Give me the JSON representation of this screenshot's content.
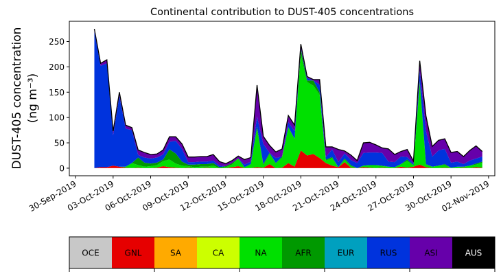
{
  "chart_data": {
    "type": "area",
    "stacked": true,
    "title": "Continental contribution to DUST-405 concentrations",
    "ylabel_line1": "DUST-405 concentration",
    "ylabel_line2": "(ng m⁻³)",
    "xlabel": "",
    "ylim": [
      -15,
      290
    ],
    "yticks": [
      0,
      50,
      100,
      150,
      200,
      250
    ],
    "xticks": [
      "30-Sep-2019",
      "03-Oct-2019",
      "06-Oct-2019",
      "09-Oct-2019",
      "12-Oct-2019",
      "15-Oct-2019",
      "18-Oct-2019",
      "21-Oct-2019",
      "24-Oct-2019",
      "27-Oct-2019",
      "30-Oct-2019",
      "02-Nov-2019"
    ],
    "x": [
      "2019-10-01T12",
      "2019-10-02T00",
      "2019-10-02T12",
      "2019-10-03T00",
      "2019-10-03T12",
      "2019-10-04T00",
      "2019-10-04T12",
      "2019-10-05T00",
      "2019-10-05T12",
      "2019-10-06T00",
      "2019-10-06T12",
      "2019-10-07T00",
      "2019-10-07T12",
      "2019-10-08T00",
      "2019-10-08T12",
      "2019-10-09T00",
      "2019-10-09T12",
      "2019-10-10T00",
      "2019-10-10T12",
      "2019-10-11T00",
      "2019-10-11T12",
      "2019-10-12T00",
      "2019-10-12T12",
      "2019-10-13T00",
      "2019-10-13T12",
      "2019-10-14T00",
      "2019-10-14T12",
      "2019-10-15T00",
      "2019-10-15T12",
      "2019-10-16T00",
      "2019-10-16T12",
      "2019-10-17T00",
      "2019-10-17T12",
      "2019-10-18T00",
      "2019-10-18T12",
      "2019-10-19T00",
      "2019-10-19T12",
      "2019-10-20T00",
      "2019-10-20T12",
      "2019-10-21T00",
      "2019-10-21T12",
      "2019-10-22T00",
      "2019-10-22T12",
      "2019-10-23T00",
      "2019-10-23T12",
      "2019-10-24T00",
      "2019-10-24T12",
      "2019-10-25T00",
      "2019-10-25T12",
      "2019-10-26T00",
      "2019-10-26T12",
      "2019-10-27T00",
      "2019-10-27T12",
      "2019-10-28T00",
      "2019-10-28T12",
      "2019-10-29T00",
      "2019-10-29T12",
      "2019-10-30T00",
      "2019-10-30T12",
      "2019-10-31T00",
      "2019-10-31T12",
      "2019-11-01T00",
      "2019-11-01T12"
    ],
    "series": [
      {
        "name": "OCE",
        "color": "#c8c8c8",
        "values": [
          0,
          0,
          0,
          0,
          0,
          0,
          0,
          0,
          0,
          0,
          0,
          0,
          0,
          0,
          0,
          0,
          0,
          0,
          0,
          0,
          0,
          0,
          0,
          0,
          0,
          0,
          0,
          0,
          0,
          0,
          0,
          0,
          0,
          0,
          0,
          0,
          0,
          0,
          0,
          0,
          0,
          0,
          0,
          0,
          0,
          0,
          0,
          0,
          0,
          0,
          0,
          0,
          0,
          0,
          0,
          0,
          0,
          0,
          0,
          0,
          0,
          0,
          0
        ]
      },
      {
        "name": "GNL",
        "color": "#e60000",
        "values": [
          0,
          2,
          2,
          5,
          3,
          1,
          0,
          1,
          0,
          0,
          1,
          4,
          2,
          1,
          0,
          1,
          0,
          0,
          1,
          0,
          0,
          0,
          2,
          4,
          0,
          0,
          2,
          1,
          8,
          0,
          1,
          10,
          3,
          35,
          25,
          28,
          20,
          10,
          5,
          2,
          12,
          1,
          0,
          2,
          1,
          0,
          1,
          0,
          0,
          3,
          1,
          3,
          7,
          2,
          0,
          0,
          1,
          0,
          0,
          1,
          0,
          2,
          1
        ]
      },
      {
        "name": "SA",
        "color": "#ffaa00",
        "values": [
          0,
          0,
          0,
          0,
          0,
          0,
          0,
          0,
          0,
          0,
          0,
          0,
          0,
          0,
          0,
          0,
          0,
          0,
          0,
          0,
          0,
          0,
          0,
          0,
          0,
          0,
          0,
          0,
          0,
          0,
          0,
          0,
          0,
          0,
          0,
          0,
          0,
          0,
          0,
          0,
          0,
          0,
          0,
          0,
          0,
          0,
          0,
          0,
          0,
          0,
          0,
          0,
          0,
          0,
          0,
          0,
          0,
          0,
          0,
          0,
          0,
          0,
          0
        ]
      },
      {
        "name": "CA",
        "color": "#ccff00",
        "values": [
          0,
          0,
          0,
          0,
          0,
          0,
          0,
          0,
          0,
          0,
          0,
          0,
          0,
          0,
          0,
          0,
          0,
          0,
          0,
          0,
          0,
          0,
          0,
          0,
          0,
          0,
          0,
          0,
          0,
          0,
          0,
          0,
          0,
          0,
          0,
          0,
          0,
          0,
          0,
          0,
          0,
          0,
          0,
          0,
          0,
          0,
          0,
          0,
          0,
          0,
          0,
          0,
          0,
          0,
          0,
          0,
          0,
          0,
          0,
          0,
          0,
          0,
          0
        ]
      },
      {
        "name": "NA",
        "color": "#00e000",
        "values": [
          0,
          0,
          0,
          0,
          0,
          2,
          10,
          5,
          3,
          4,
          5,
          10,
          15,
          8,
          5,
          3,
          2,
          3,
          2,
          5,
          0,
          2,
          5,
          15,
          2,
          8,
          75,
          5,
          20,
          10,
          20,
          70,
          55,
          190,
          145,
          135,
          125,
          5,
          15,
          0,
          5,
          3,
          0,
          3,
          5,
          6,
          3,
          3,
          2,
          5,
          13,
          3,
          160,
          5,
          3,
          5,
          5,
          1,
          3,
          2,
          5,
          5,
          10
        ]
      },
      {
        "name": "AFR",
        "color": "#009900",
        "values": [
          0,
          0,
          0,
          0,
          0,
          0,
          0,
          15,
          8,
          5,
          5,
          3,
          20,
          20,
          8,
          3,
          5,
          5,
          5,
          5,
          2,
          2,
          3,
          0,
          0,
          0,
          5,
          2,
          2,
          0,
          2,
          1,
          0,
          10,
          3,
          10,
          5,
          2,
          2,
          0,
          2,
          2,
          0,
          0,
          0,
          0,
          1,
          0,
          0,
          0,
          3,
          0,
          5,
          1,
          0,
          0,
          2,
          0,
          0,
          0,
          0,
          2,
          2
        ]
      },
      {
        "name": "EUR",
        "color": "#00a0bf",
        "values": [
          0,
          0,
          0,
          0,
          0,
          0,
          0,
          0,
          0,
          0,
          0,
          0,
          0,
          0,
          0,
          0,
          0,
          0,
          0,
          0,
          0,
          0,
          0,
          0,
          0,
          0,
          0,
          0,
          0,
          0,
          0,
          0,
          0,
          0,
          0,
          0,
          0,
          0,
          0,
          0,
          0,
          0,
          0,
          0,
          0,
          0,
          0,
          0,
          0,
          0,
          0,
          0,
          0,
          0,
          0,
          0,
          0,
          0,
          0,
          0,
          0,
          0,
          0
        ]
      },
      {
        "name": "RUS",
        "color": "#0033dd",
        "values": [
          270,
          200,
          205,
          60,
          140,
          75,
          65,
          5,
          10,
          10,
          10,
          10,
          15,
          25,
          25,
          5,
          5,
          5,
          5,
          5,
          3,
          0,
          0,
          0,
          5,
          5,
          20,
          40,
          0,
          10,
          0,
          10,
          15,
          2,
          5,
          0,
          15,
          5,
          15,
          10,
          10,
          10,
          10,
          25,
          25,
          25,
          25,
          10,
          10,
          15,
          5,
          3,
          20,
          65,
          20,
          30,
          30,
          10,
          10,
          5,
          10,
          10,
          10
        ]
      },
      {
        "name": "ASI",
        "color": "#6600aa",
        "values": [
          5,
          5,
          7,
          8,
          7,
          7,
          5,
          10,
          10,
          8,
          7,
          9,
          10,
          8,
          10,
          10,
          10,
          10,
          10,
          12,
          8,
          5,
          5,
          5,
          10,
          8,
          62,
          15,
          15,
          12,
          15,
          13,
          12,
          8,
          3,
          2,
          10,
          20,
          5,
          25,
          5,
          10,
          5,
          20,
          20,
          15,
          10,
          25,
          15,
          10,
          15,
          5,
          20,
          30,
          20,
          20,
          20,
          20,
          20,
          15,
          20,
          25,
          10
        ]
      },
      {
        "name": "AUS",
        "color": "#000000",
        "values": [
          0,
          0,
          0,
          0,
          0,
          0,
          0,
          0,
          0,
          0,
          0,
          0,
          0,
          0,
          0,
          0,
          0,
          0,
          0,
          0,
          0,
          0,
          0,
          0,
          0,
          0,
          0,
          0,
          0,
          0,
          0,
          0,
          0,
          0,
          0,
          0,
          0,
          0,
          0,
          0,
          0,
          0,
          0,
          0,
          0,
          0,
          0,
          0,
          0,
          0,
          0,
          0,
          0,
          0,
          0,
          0,
          0,
          0,
          0,
          0,
          0,
          0,
          0
        ]
      }
    ],
    "legend": {
      "placement": "bottom",
      "labels": [
        "OCE",
        "GNL",
        "SA",
        "CA",
        "NA",
        "AFR",
        "EUR",
        "RUS",
        "ASI",
        "AUS"
      ],
      "label_colors": [
        "#000000",
        "#000000",
        "#000000",
        "#000000",
        "#000000",
        "#000000",
        "#000000",
        "#000000",
        "#000000",
        "#ffffff"
      ]
    }
  }
}
